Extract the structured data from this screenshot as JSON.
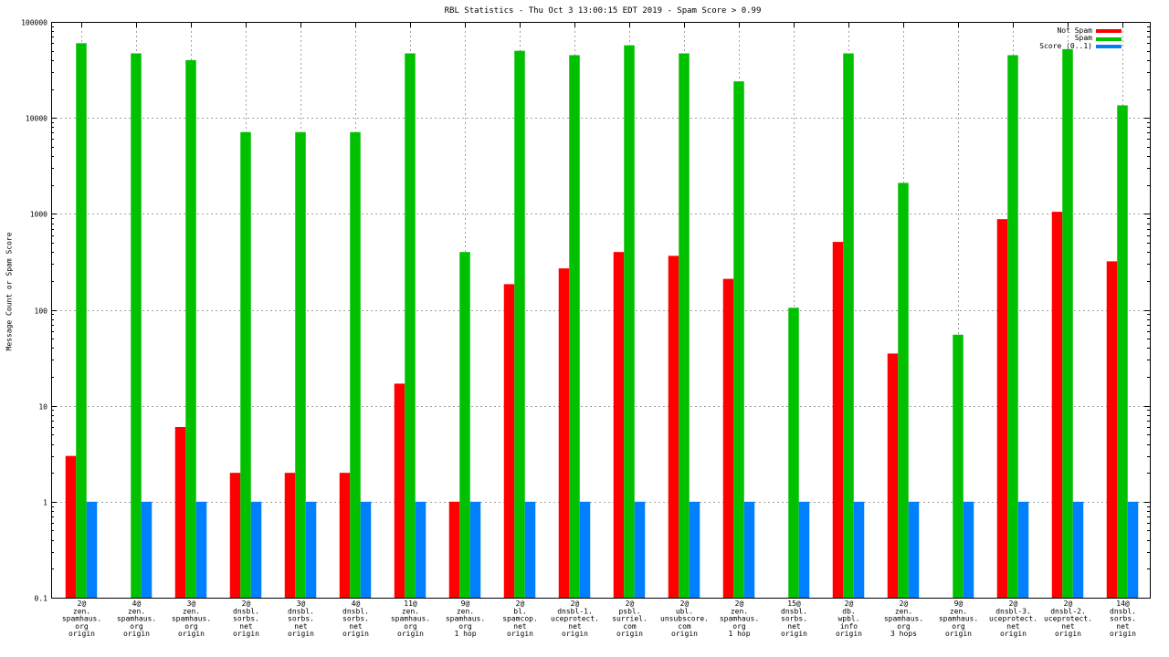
{
  "chart_data": {
    "type": "bar",
    "title": "RBL Statistics - Thu Oct  3 13:00:15 EDT 2019 - Spam Score > 0.99",
    "xlabel": "",
    "ylabel": "Message Count or Spam Score",
    "yscale": "log",
    "ylim": [
      0.1,
      100000
    ],
    "yticks": [
      "0.1",
      "1",
      "10",
      "100",
      "1000",
      "10000",
      "100000"
    ],
    "grid": true,
    "legend_position": "top-right",
    "categories": [
      [
        "2@",
        "zen.",
        "spamhaus.",
        "org",
        "origin"
      ],
      [
        "4@",
        "zen.",
        "spamhaus.",
        "org",
        "origin"
      ],
      [
        "3@",
        "zen.",
        "spamhaus.",
        "org",
        "origin"
      ],
      [
        "2@",
        "dnsbl.",
        "sorbs.",
        "net",
        "origin"
      ],
      [
        "3@",
        "dnsbl.",
        "sorbs.",
        "net",
        "origin"
      ],
      [
        "4@",
        "dnsbl.",
        "sorbs.",
        "net",
        "origin"
      ],
      [
        "11@",
        "zen.",
        "spamhaus.",
        "org",
        "origin"
      ],
      [
        "9@",
        "zen.",
        "spamhaus.",
        "org",
        "1 hop"
      ],
      [
        "2@",
        "bl.",
        "spamcop.",
        "net",
        "origin"
      ],
      [
        "2@",
        "dnsbl-1.",
        "uceprotect.",
        "net",
        "origin"
      ],
      [
        "2@",
        "psbl.",
        "surriel.",
        "com",
        "origin"
      ],
      [
        "2@",
        "ubl.",
        "unsubscore.",
        "com",
        "origin"
      ],
      [
        "2@",
        "zen.",
        "spamhaus.",
        "org",
        "1 hop"
      ],
      [
        "15@",
        "dnsbl.",
        "sorbs.",
        "net",
        "origin"
      ],
      [
        "2@",
        "db.",
        "wpbl.",
        "info",
        "origin"
      ],
      [
        "2@",
        "zen.",
        "spamhaus.",
        "org",
        "3 hops"
      ],
      [
        "9@",
        "zen.",
        "spamhaus.",
        "org",
        "origin"
      ],
      [
        "2@",
        "dnsbl-3.",
        "uceprotect.",
        "net",
        "origin"
      ],
      [
        "2@",
        "dnsbl-2.",
        "uceprotect.",
        "net",
        "origin"
      ],
      [
        "14@",
        "dnsbl.",
        "sorbs.",
        "net",
        "origin"
      ]
    ],
    "series": [
      {
        "name": "Not Spam",
        "color": "#ff0000",
        "values": [
          3,
          0,
          6,
          2,
          2,
          2,
          17,
          1,
          185,
          270,
          400,
          365,
          210,
          0,
          510,
          35,
          0,
          880,
          1050,
          320
        ]
      },
      {
        "name": "Spam",
        "color": "#00c000",
        "values": [
          60000,
          47000,
          40000,
          7100,
          7100,
          7100,
          47000,
          400,
          50000,
          45000,
          57000,
          47000,
          24000,
          105,
          47000,
          2100,
          55,
          45000,
          52000,
          13500
        ]
      },
      {
        "name": "Score (0..1)",
        "color": "#0080ff",
        "values": [
          1,
          1,
          1,
          1,
          1,
          1,
          1,
          1,
          1,
          1,
          1,
          1,
          1,
          1,
          1,
          1,
          1,
          1,
          1,
          1
        ]
      }
    ]
  }
}
